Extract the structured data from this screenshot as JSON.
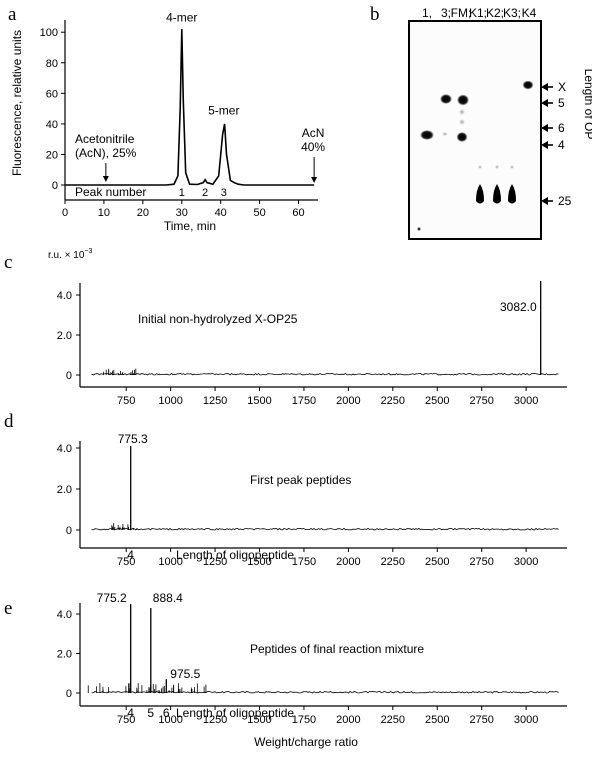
{
  "panels": {
    "a": {
      "letter": "a"
    },
    "b": {
      "letter": "b"
    },
    "c": {
      "letter": "c"
    },
    "d": {
      "letter": "d"
    },
    "e": {
      "letter": "e"
    }
  },
  "chart_data": [
    {
      "id": "a",
      "type": "line",
      "ylabel": "Fluorescence, relative units",
      "xlabel": "Time, min",
      "xlim": [
        0,
        65
      ],
      "ylim": [
        0,
        108
      ],
      "xticks": [
        0,
        10,
        20,
        30,
        40,
        50,
        60
      ],
      "yticks": [
        0,
        20,
        40,
        60,
        80,
        100
      ],
      "series": [
        {
          "x": [
            0,
            20,
            26,
            28,
            29,
            29.6,
            30,
            30.4,
            31,
            32,
            34,
            35.5,
            36,
            36.5,
            38,
            39.5,
            40.5,
            41,
            41.5,
            42.5,
            43.5,
            44.5,
            46,
            50,
            64
          ],
          "y": [
            0,
            0,
            0,
            0.5,
            6,
            50,
            102,
            55,
            8,
            0.5,
            0.3,
            1.5,
            3.5,
            1.5,
            0.5,
            6,
            33,
            40,
            20,
            3,
            1.5,
            0.5,
            0,
            0,
            0
          ]
        }
      ],
      "peak_labels": [
        {
          "text": "4-mer",
          "x": 30,
          "y": 107
        },
        {
          "text": "5-mer",
          "x": 40.8,
          "y": 46
        }
      ],
      "peak_numbers_title": "Peak number",
      "peak_numbers": [
        {
          "text": "1",
          "x": 30
        },
        {
          "text": "2",
          "x": 36
        },
        {
          "text": "3",
          "x": 40.8
        }
      ],
      "annotations": [
        {
          "line1": "Acetonitrile",
          "line2": "(AcN), 25%",
          "x": 10.5
        },
        {
          "line1": "AcN",
          "line2": "40%",
          "x": 64
        }
      ]
    },
    {
      "id": "b",
      "type": "table",
      "lanes": [
        "1,",
        "3;",
        "FM;",
        "K1;",
        "K2;",
        "K3;",
        "K4"
      ],
      "side_label": "Length of OP",
      "markers": [
        "X",
        "5",
        "6",
        "4",
        "25"
      ]
    },
    {
      "id": "c",
      "type": "bar",
      "yunit": "r.u. × 10",
      "yunit_exp": "−3",
      "xlim": [
        490,
        3230
      ],
      "ylim": [
        0,
        5.3
      ],
      "xticks": [
        750,
        1000,
        1250,
        1500,
        1750,
        2000,
        2250,
        2500,
        2750,
        3000
      ],
      "yticks": [
        0,
        2.0,
        4.0
      ],
      "peaks": [
        {
          "mz": 3082.0,
          "value": 4.7,
          "label": "3082.0"
        }
      ],
      "annotation": "Initial non-hydrolyzed X-OP25"
    },
    {
      "id": "d",
      "type": "bar",
      "xlim": [
        490,
        3230
      ],
      "ylim": [
        0,
        5.3
      ],
      "xticks": [
        750,
        1000,
        1250,
        1500,
        1750,
        2000,
        2250,
        2500,
        2750,
        3000
      ],
      "yticks": [
        0,
        2.0,
        4.0
      ],
      "peaks": [
        {
          "mz": 775.3,
          "value": 4.1,
          "label": "775.3"
        }
      ],
      "annotation": "First peak peptides",
      "length_title": "Length of oligopeptide",
      "length_marks": [
        {
          "text": "4",
          "mz": 775
        }
      ]
    },
    {
      "id": "e",
      "type": "bar",
      "xlabel": "Weight/charge ratio",
      "xlim": [
        490,
        3230
      ],
      "ylim": [
        0,
        5.3
      ],
      "xticks": [
        750,
        1000,
        1250,
        1500,
        1750,
        2000,
        2250,
        2500,
        2750,
        3000
      ],
      "yticks": [
        0,
        2.0,
        4.0
      ],
      "peaks": [
        {
          "mz": 775.2,
          "value": 4.5,
          "label": "775.2"
        },
        {
          "mz": 888.4,
          "value": 4.3,
          "label": "888.4"
        },
        {
          "mz": 975.5,
          "value": 0.7,
          "label": "975.5"
        }
      ],
      "annotation": "Peptides of final reaction mixture",
      "length_title": "Length of oligopeptide",
      "length_marks": [
        {
          "text": "4",
          "mz": 775
        },
        {
          "text": "5",
          "mz": 888
        },
        {
          "text": "6",
          "mz": 975
        }
      ]
    }
  ]
}
